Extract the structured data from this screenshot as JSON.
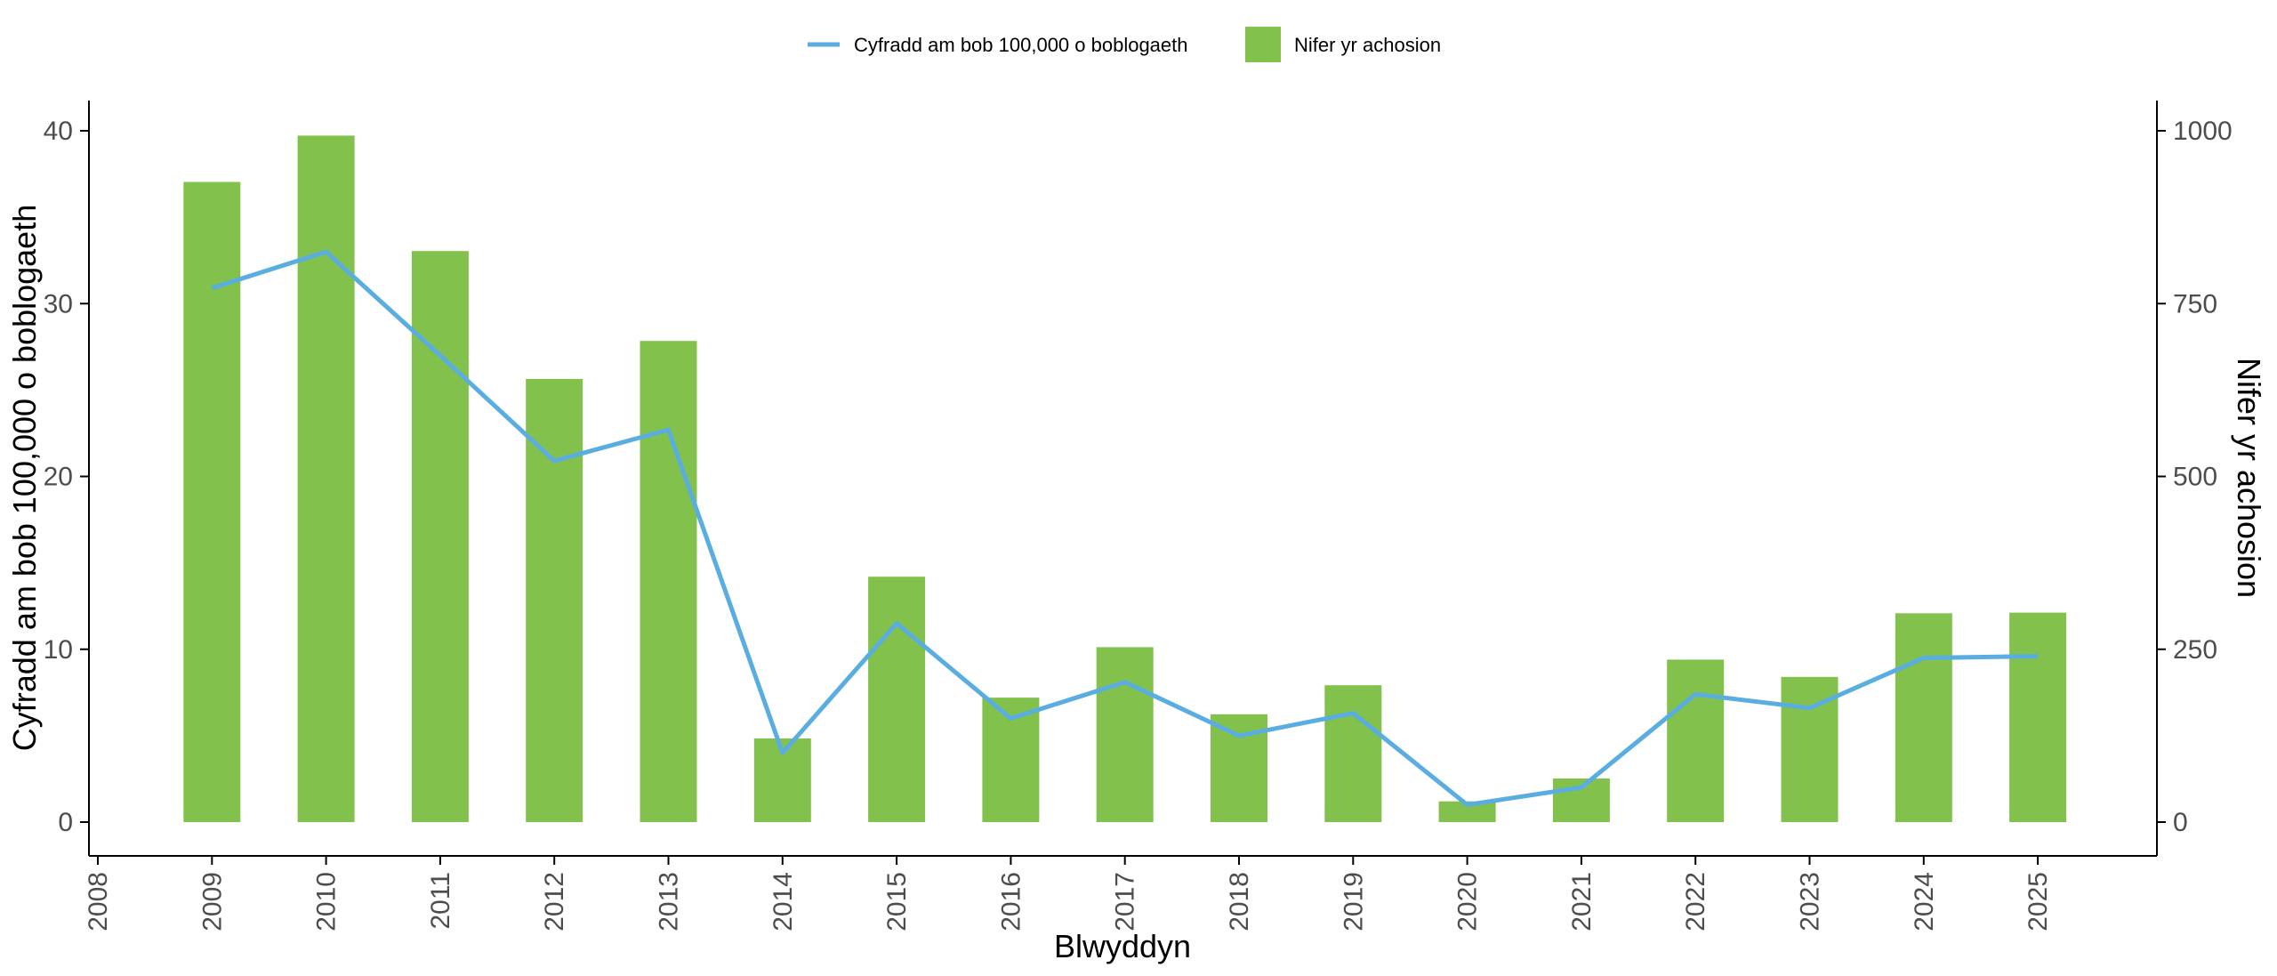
{
  "chart_data": {
    "type": "bar",
    "x_axis": {
      "title": "Blwyddyn",
      "ticks": [
        "2008",
        "2009",
        "2010",
        "2011",
        "2012",
        "2013",
        "2014",
        "2015",
        "2016",
        "2017",
        "2018",
        "2019",
        "2020",
        "2021",
        "2022",
        "2023",
        "2024",
        "2025"
      ]
    },
    "y_left": {
      "title": "Cyfradd am bob 100,000 o boblogaeth",
      "range": [
        0,
        42
      ],
      "ticks": [
        0,
        10,
        20,
        30,
        40
      ]
    },
    "y_right": {
      "title": "Nifer yr achosion",
      "range": [
        0,
        1050
      ],
      "ticks": [
        0,
        250,
        500,
        750,
        1000
      ]
    },
    "categories": [
      "2009",
      "2010",
      "2011",
      "2012",
      "2013",
      "2014",
      "2015",
      "2016",
      "2017",
      "2018",
      "2019",
      "2020",
      "2021",
      "2022",
      "2023",
      "2024",
      "2025"
    ],
    "series": [
      {
        "name": "Nifer yr achosion",
        "type": "bar",
        "axis": "right",
        "color": "#82c14b",
        "values": [
          926,
          993,
          826,
          641,
          696,
          121,
          355,
          180,
          253,
          156,
          198,
          30,
          63,
          235,
          210,
          302,
          303
        ]
      },
      {
        "name": "Cyfradd am bob 100,000 o boblogaeth",
        "type": "line",
        "axis": "left",
        "color": "#5aade0",
        "values": [
          30.9,
          33.0,
          27.0,
          20.9,
          22.7,
          4.0,
          11.5,
          6.0,
          8.1,
          5.0,
          6.3,
          1.0,
          2.0,
          7.4,
          6.6,
          9.5,
          9.6
        ]
      }
    ],
    "legend": {
      "position": "top",
      "items": [
        "Cyfradd am bob 100,000 o boblogaeth",
        "Nifer yr achosion"
      ]
    },
    "grid": false
  }
}
